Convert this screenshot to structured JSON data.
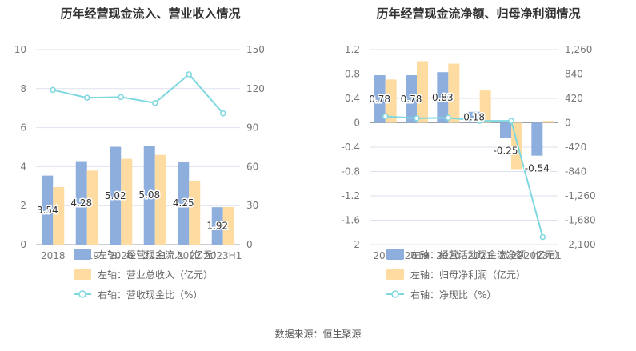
{
  "source_text": "数据来源：恒生聚源",
  "colors": {
    "bar1": "#8eaedd",
    "bar2": "#fddba1",
    "line": "#7fd8e0",
    "grid": "#dde2ee",
    "axis": "#9aa0aa"
  },
  "chart_data": [
    {
      "type": "bar",
      "title": "历年经营现金流入、营业收入情况",
      "categories": [
        "2018",
        "2019",
        "2020",
        "2021",
        "2022",
        "2023H1"
      ],
      "y_left": {
        "min": 0,
        "max": 10,
        "ticks": [
          "0",
          "2",
          "4",
          "6",
          "8",
          "10"
        ]
      },
      "y_right": {
        "min": 0,
        "max": 150,
        "ticks": [
          "0",
          "30",
          "60",
          "90",
          "120",
          "150"
        ]
      },
      "series": [
        {
          "name": "左轴：经营现金流入（亿元）",
          "kind": "bar",
          "axis": "left",
          "values": [
            3.54,
            4.28,
            5.02,
            5.08,
            4.25,
            1.92
          ],
          "data_labels": [
            "3.54",
            "4.28",
            "5.02",
            "5.08",
            "4.25",
            "1.92"
          ]
        },
        {
          "name": "左轴：营业总收入（亿元）",
          "kind": "bar",
          "axis": "left",
          "values": [
            2.95,
            3.8,
            4.4,
            4.6,
            3.25,
            1.93
          ]
        },
        {
          "name": "右轴：营收现金比（%）",
          "kind": "line",
          "axis": "right",
          "values": [
            119,
            113,
            113.5,
            109,
            131,
            101
          ]
        }
      ],
      "legend_position": "bottom"
    },
    {
      "type": "bar",
      "title": "历年经营现金流净额、归母净利润情况",
      "categories": [
        "2018",
        "2019",
        "2020",
        "2021",
        "2022",
        "2023H1"
      ],
      "y_left": {
        "min": -2,
        "max": 1.2,
        "ticks": [
          "-2",
          "-1.6",
          "-1.2",
          "-0.8",
          "-0.4",
          "0",
          "0.4",
          "0.8",
          "1.2"
        ]
      },
      "y_right": {
        "min": -2100,
        "max": 1260,
        "ticks": [
          "-2,100",
          "-1,680",
          "-1,260",
          "-840",
          "-420",
          "0",
          "420",
          "840",
          "1,260"
        ]
      },
      "series": [
        {
          "name": "左轴：经营活动现金流净额（亿元）",
          "kind": "bar",
          "axis": "left",
          "values": [
            0.78,
            0.78,
            0.83,
            0.18,
            -0.25,
            -0.54
          ],
          "data_labels": [
            "0.78",
            "0.78",
            "0.83",
            "0.18",
            "-0.25",
            "-0.54"
          ]
        },
        {
          "name": "左轴：归母净利润（亿元）",
          "kind": "bar",
          "axis": "left",
          "values": [
            0.71,
            1.01,
            0.97,
            0.53,
            -0.76,
            0.03
          ]
        },
        {
          "name": "右轴：净现比（%）",
          "kind": "line",
          "axis": "right",
          "values": [
            110,
            77,
            86,
            34,
            33,
            -1970
          ]
        }
      ],
      "legend_position": "bottom"
    }
  ]
}
